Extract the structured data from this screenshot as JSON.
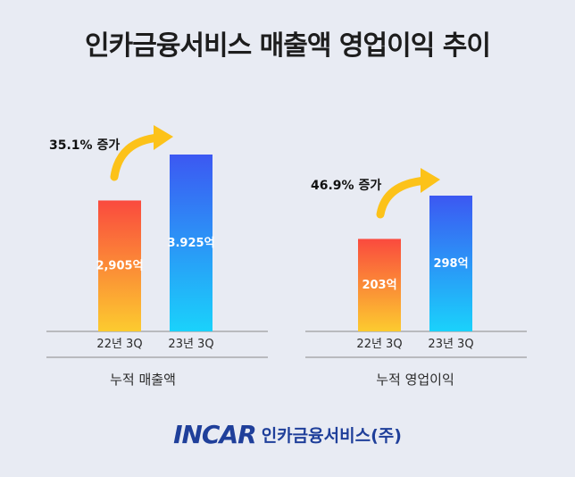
{
  "title": "인카금융서비스 매출액 영업이익 추이",
  "chart_data": [
    {
      "type": "bar",
      "xlabel": "누적 매출액",
      "categories": [
        "22년 3Q",
        "23년 3Q"
      ],
      "values": [
        2905,
        3925
      ],
      "data_labels": [
        "2,905억",
        "3.925억"
      ],
      "annotation": "35.1% 증가",
      "colors": {
        "bar1_top": "#fa4a3e",
        "bar1_bottom": "#fccb2f",
        "bar2_top": "#3c58f2",
        "bar2_bottom": "#1ad2fb"
      }
    },
    {
      "type": "bar",
      "xlabel": "누적 영업이익",
      "categories": [
        "22년 3Q",
        "23년 3Q"
      ],
      "values": [
        203,
        298
      ],
      "data_labels": [
        "203억",
        "298억"
      ],
      "annotation": "46.9% 증가",
      "colors": {
        "bar1_top": "#fa4a3e",
        "bar1_bottom": "#fccb2f",
        "bar2_top": "#3c58f2",
        "bar2_bottom": "#1ad2fb"
      }
    }
  ],
  "brand": {
    "logo": "INCAR",
    "name": "인카금융서비스(주)"
  },
  "colors": {
    "background": "#e8ebf3",
    "axis": "#8a8a8a",
    "arrow": "#fcc219",
    "brand": "#1f3f9a"
  }
}
